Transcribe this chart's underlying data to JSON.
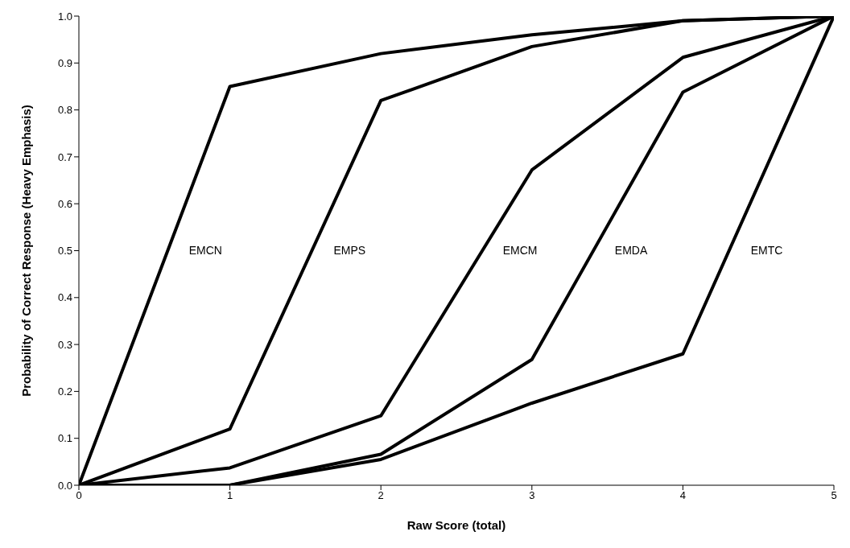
{
  "chart_data": {
    "type": "line",
    "xlabel": "Raw Score (total)",
    "ylabel": "Probability of Correct Response (Heavy Emphasis)",
    "x": [
      0,
      1,
      2,
      3,
      4,
      5
    ],
    "series": [
      {
        "name": "EMCN",
        "color": "#000000",
        "values": [
          0,
          0.85,
          0.92,
          0.96,
          0.99,
          1.0
        ]
      },
      {
        "name": "EMPS",
        "color": "#000000",
        "values": [
          0,
          0.12,
          0.82,
          0.935,
          0.99,
          1.0
        ]
      },
      {
        "name": "EMCM",
        "color": "#000000",
        "values": [
          0,
          0.037,
          0.148,
          0.672,
          0.912,
          1.0
        ]
      },
      {
        "name": "EMDA",
        "color": "#000000",
        "values": [
          0,
          0,
          0.066,
          0.268,
          0.838,
          1.0
        ]
      },
      {
        "name": "EMTC",
        "color": "#000000",
        "values": [
          0,
          0,
          0.055,
          0.175,
          0.28,
          1.0
        ]
      }
    ],
    "xlim": [
      0,
      5
    ],
    "xticks": [
      0,
      1,
      2,
      3,
      4,
      5
    ],
    "ylim": [
      0,
      1
    ],
    "yticks": [
      {
        "value": 0,
        "label": "0.0"
      },
      {
        "value": 0.1,
        "label": "0.1"
      },
      {
        "value": 0.2,
        "label": "0.2"
      },
      {
        "value": 0.3,
        "label": "0.3"
      },
      {
        "value": 0.4,
        "label": "0.4"
      },
      {
        "value": 0.5,
        "label": "0.5"
      },
      {
        "value": 0.6,
        "label": "0.6"
      },
      {
        "value": 0.7,
        "label": "0.7"
      },
      {
        "value": 0.8,
        "label": "0.8"
      },
      {
        "value": 0.9,
        "label": "0.9"
      },
      {
        "value": 1,
        "label": "1.0"
      }
    ],
    "grid": false,
    "legend": false,
    "marker": "none",
    "line_style": "solid"
  }
}
